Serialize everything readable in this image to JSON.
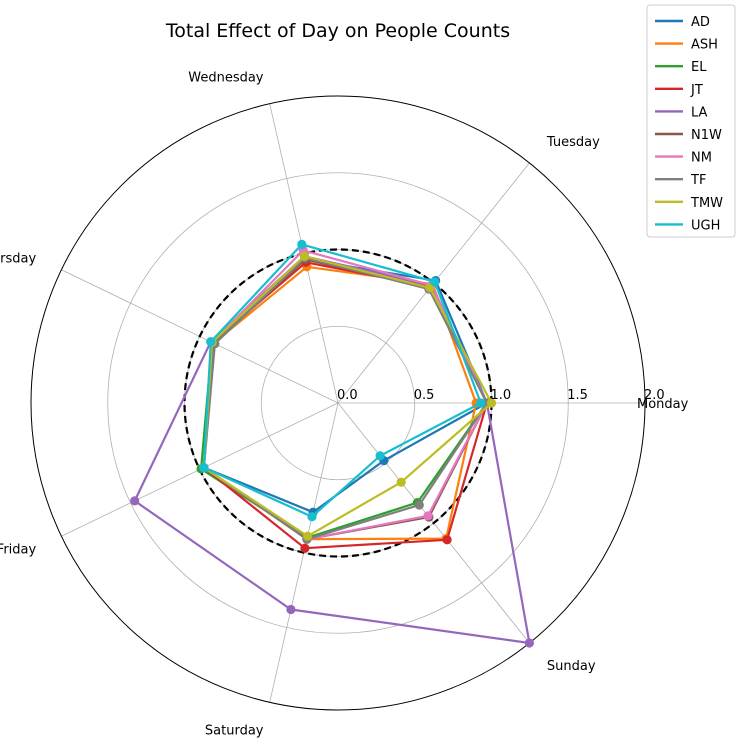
{
  "chart_data": {
    "type": "radar",
    "title": "Total Effect of Day on People Counts",
    "categories": [
      "Monday",
      "Tuesday",
      "Wednesday",
      "Thursday",
      "Friday",
      "Saturday",
      "Sunday"
    ],
    "rlim": [
      0,
      2.0
    ],
    "rticks": [
      "0.0",
      "0.5",
      "1.0",
      "1.5",
      "2.0"
    ],
    "rtick_values": [
      0,
      0.5,
      1.0,
      1.5,
      2.0
    ],
    "reference": {
      "value": 1.0,
      "style": "dashed",
      "color": "#000000"
    },
    "grid": true,
    "legend_position": "top-right",
    "series": [
      {
        "name": "AD",
        "color": "#1f77b4",
        "values": [
          0.97,
          1.02,
          0.96,
          0.91,
          0.97,
          0.73,
          0.48
        ]
      },
      {
        "name": "ASH",
        "color": "#ff7f0e",
        "values": [
          0.9,
          0.99,
          0.91,
          0.9,
          0.97,
          0.91,
          1.13
        ]
      },
      {
        "name": "EL",
        "color": "#2ca02c",
        "values": [
          0.97,
          0.97,
          0.96,
          0.91,
          0.99,
          0.9,
          0.83
        ]
      },
      {
        "name": "JT",
        "color": "#d62728",
        "values": [
          0.97,
          0.97,
          0.94,
          0.91,
          0.97,
          0.97,
          1.14
        ]
      },
      {
        "name": "LA",
        "color": "#9467bd",
        "values": [
          0.97,
          0.98,
          0.98,
          0.92,
          1.47,
          1.38,
          2.0
        ]
      },
      {
        "name": "N1W",
        "color": "#8c564b",
        "values": [
          0.97,
          0.96,
          0.96,
          0.9,
          0.97,
          0.91,
          0.95
        ]
      },
      {
        "name": "NM",
        "color": "#e377c2",
        "values": [
          0.97,
          0.98,
          1.02,
          0.91,
          0.97,
          0.91,
          0.94
        ]
      },
      {
        "name": "TF",
        "color": "#7f7f7f",
        "values": [
          0.97,
          0.95,
          0.97,
          0.89,
          0.97,
          0.91,
          0.85
        ]
      },
      {
        "name": "TMW",
        "color": "#bcbd22",
        "values": [
          1.0,
          0.96,
          0.98,
          0.91,
          0.97,
          0.89,
          0.66
        ]
      },
      {
        "name": "UGH",
        "color": "#17becf",
        "values": [
          0.93,
          1.01,
          1.06,
          0.92,
          0.97,
          0.76,
          0.44
        ]
      }
    ]
  }
}
